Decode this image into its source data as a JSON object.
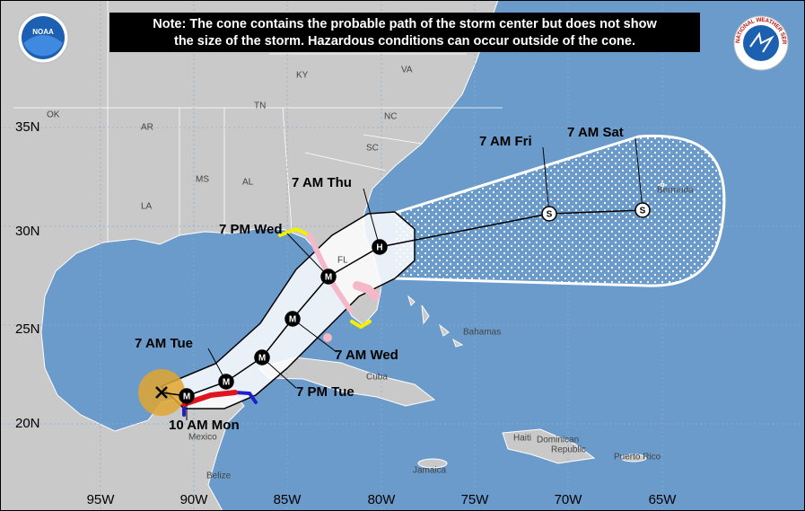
{
  "note": [
    "Note: The cone contains the probable path of the storm center but does not show",
    "the size of the storm. Hazardous conditions can occur outside of the cone."
  ],
  "logos": {
    "left": "NOAA",
    "right": "NATIONAL WEATHER SERVICE"
  },
  "latitude_labels": [
    "35N",
    "30N",
    "25N",
    "20N"
  ],
  "longitude_labels": [
    "95W",
    "90W",
    "85W",
    "80W",
    "75W",
    "70W",
    "65W"
  ],
  "places": [
    "KY",
    "VA",
    "TN",
    "NC",
    "OK",
    "AR",
    "SC",
    "MS",
    "AL",
    "LA",
    "FL",
    "Bermuda",
    "Bahamas",
    "Cuba",
    "Haiti",
    "Dominican",
    "Republic",
    "Puerto Rico",
    "Jamaica",
    "Mexico",
    "Belize"
  ],
  "track": [
    {
      "time": "10 AM Mon",
      "marker": "M"
    },
    {
      "time": "7 AM Tue",
      "marker": "M"
    },
    {
      "time": "7 PM Tue",
      "marker": "M"
    },
    {
      "time": "7 AM Wed",
      "marker": "M"
    },
    {
      "time": "7 PM Wed",
      "marker": "M"
    },
    {
      "time": "7 AM Thu",
      "marker": "H"
    },
    {
      "time": "7 AM Fri",
      "marker": "S"
    },
    {
      "time": "7 AM Sat",
      "marker": "S"
    }
  ]
}
